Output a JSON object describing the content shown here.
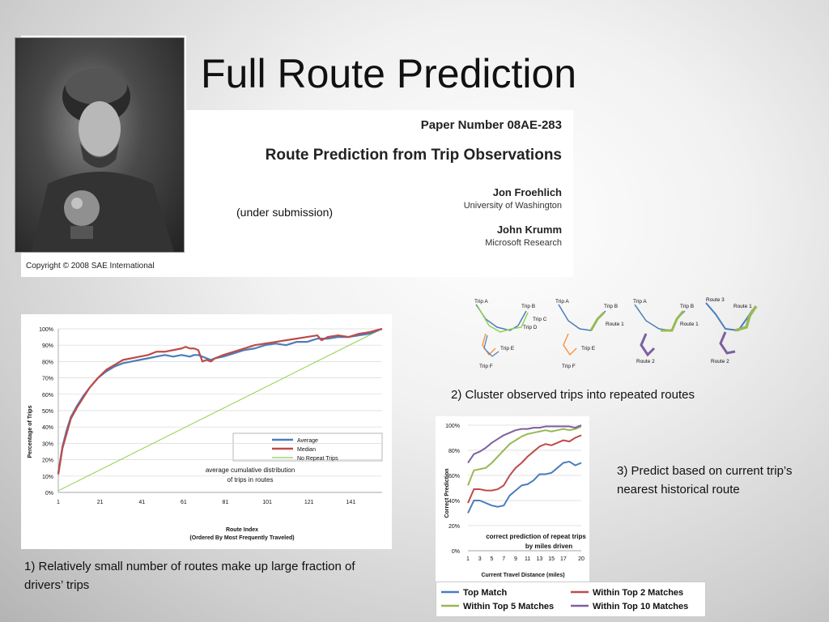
{
  "slide": {
    "title": "Full Route Prediction",
    "copyright": "Copyright © 2008 SAE International",
    "under_submission": "(under submission)"
  },
  "paper": {
    "number": "Paper Number 08AE-283",
    "title": "Route Prediction from Trip Observations",
    "authors": [
      {
        "name": "Jon Froehlich",
        "affiliation": "University of Washington"
      },
      {
        "name": "John Krumm",
        "affiliation": "Microsoft Research"
      }
    ]
  },
  "captions": {
    "one": "1) Relatively small number of routes make up large fraction of drivers’ trips",
    "two": "2) Cluster observed trips into repeated routes",
    "three": "3) Predict based on current trip’s nearest historical route"
  },
  "colors": {
    "blue": "#4a7ebb",
    "red": "#be4b48",
    "green": "#98b954",
    "purple": "#7d60a0",
    "orange": "#f79646",
    "light_green": "#8fd14f"
  },
  "route_diagram": {
    "panels": [
      {
        "labels": [
          "Trip A",
          "Trip B",
          "Trip C",
          "Trip D",
          "Trip E",
          "Trip F"
        ]
      },
      {
        "labels": [
          "Trip A",
          "Trip B",
          "Route 1",
          "Trip E",
          "Trip F"
        ]
      },
      {
        "labels": [
          "Trip A",
          "Trip B",
          "Route 1",
          "Route 2"
        ]
      },
      {
        "labels": [
          "Route 3",
          "Route 1",
          "Route 2"
        ]
      }
    ]
  },
  "chart_data": [
    {
      "type": "line",
      "xlabel": "Route Index\n(Ordered By Most Frequently Traveled)",
      "ylabel": "Percentage of Trips",
      "x_ticks": [
        "1",
        "21",
        "41",
        "61",
        "81",
        "101",
        "121",
        "141"
      ],
      "y_ticks": [
        "0%",
        "10%",
        "20%",
        "30%",
        "40%",
        "50%",
        "60%",
        "70%",
        "80%",
        "90%",
        "100%"
      ],
      "xlim": [
        1,
        156
      ],
      "ylim": [
        0,
        100
      ],
      "annotation": "average cumulative distribution\nof trips in routes",
      "legend_position": "right",
      "series": [
        {
          "name": "Average",
          "color": "#4a7ebb",
          "x": [
            1,
            2,
            3,
            5,
            7,
            10,
            13,
            16,
            20,
            24,
            28,
            32,
            36,
            40,
            44,
            48,
            52,
            56,
            60,
            64,
            66,
            68,
            70,
            72,
            74,
            76,
            80,
            85,
            90,
            95,
            100,
            105,
            110,
            115,
            120,
            125,
            130,
            135,
            140,
            145,
            150,
            156
          ],
          "y": [
            12,
            20,
            28,
            38,
            46,
            53,
            59,
            64,
            70,
            74,
            77,
            79,
            80,
            81,
            82,
            83,
            84,
            83,
            84,
            83,
            84,
            84,
            83,
            82,
            81,
            82,
            83,
            85,
            87,
            88,
            90,
            91,
            90,
            92,
            92,
            94,
            94,
            95,
            95,
            96,
            97,
            100
          ]
        },
        {
          "name": "Median",
          "color": "#be4b48",
          "x": [
            1,
            2,
            3,
            5,
            7,
            10,
            13,
            16,
            20,
            24,
            28,
            32,
            36,
            40,
            44,
            48,
            52,
            56,
            60,
            62,
            64,
            66,
            68,
            70,
            72,
            74,
            76,
            80,
            85,
            90,
            95,
            100,
            105,
            110,
            115,
            120,
            125,
            127,
            130,
            135,
            140,
            145,
            150,
            156
          ],
          "y": [
            11,
            19,
            27,
            36,
            45,
            52,
            58,
            64,
            70,
            75,
            78,
            81,
            82,
            83,
            84,
            86,
            86,
            87,
            88,
            89,
            88,
            88,
            87,
            80,
            81,
            80,
            82,
            84,
            86,
            88,
            90,
            91,
            92,
            93,
            94,
            95,
            96,
            93,
            95,
            96,
            95,
            97,
            98,
            100
          ]
        },
        {
          "name": "No Repeat Trips",
          "color": "#8fd14f",
          "x": [
            1,
            156
          ],
          "y": [
            1,
            100
          ]
        }
      ]
    },
    {
      "type": "line",
      "xlabel": "Current Travel Distance (miles)",
      "ylabel": "Correct Prediction",
      "x": [
        1,
        2,
        3,
        4,
        5,
        6,
        7,
        8,
        9,
        10,
        11,
        12,
        13,
        14,
        15,
        16,
        17,
        18,
        19,
        20
      ],
      "x_ticks": [
        "1",
        "3",
        "5",
        "7",
        "9",
        "11",
        "13",
        "15",
        "17",
        "20"
      ],
      "y_ticks": [
        "0%",
        "20%",
        "40%",
        "60%",
        "80%",
        "100%"
      ],
      "ylim": [
        0,
        100
      ],
      "annotation": "correct prediction of repeat trips\nby miles driven",
      "legend_position": "bottom",
      "series": [
        {
          "name": "Top Match",
          "color": "#4a7ebb",
          "values": [
            30,
            40,
            40,
            38,
            36,
            35,
            36,
            44,
            48,
            52,
            53,
            56,
            61,
            61,
            62,
            66,
            70,
            71,
            68,
            70
          ]
        },
        {
          "name": "Within Top 2 Matches",
          "color": "#be4b48",
          "values": [
            38,
            49,
            49,
            48,
            48,
            49,
            52,
            60,
            66,
            70,
            75,
            79,
            83,
            85,
            84,
            86,
            88,
            87,
            90,
            92
          ]
        },
        {
          "name": "Within Top 5 Matches",
          "color": "#98b954",
          "values": [
            52,
            64,
            65,
            66,
            70,
            75,
            80,
            85,
            88,
            91,
            93,
            94,
            95,
            96,
            95,
            96,
            97,
            96,
            97,
            99
          ]
        },
        {
          "name": "Within Top 10 Matches",
          "color": "#7d60a0",
          "values": [
            70,
            77,
            79,
            82,
            86,
            89,
            92,
            94,
            96,
            97,
            97,
            98,
            98,
            99,
            99,
            99,
            99,
            99,
            98,
            100
          ]
        }
      ]
    }
  ]
}
